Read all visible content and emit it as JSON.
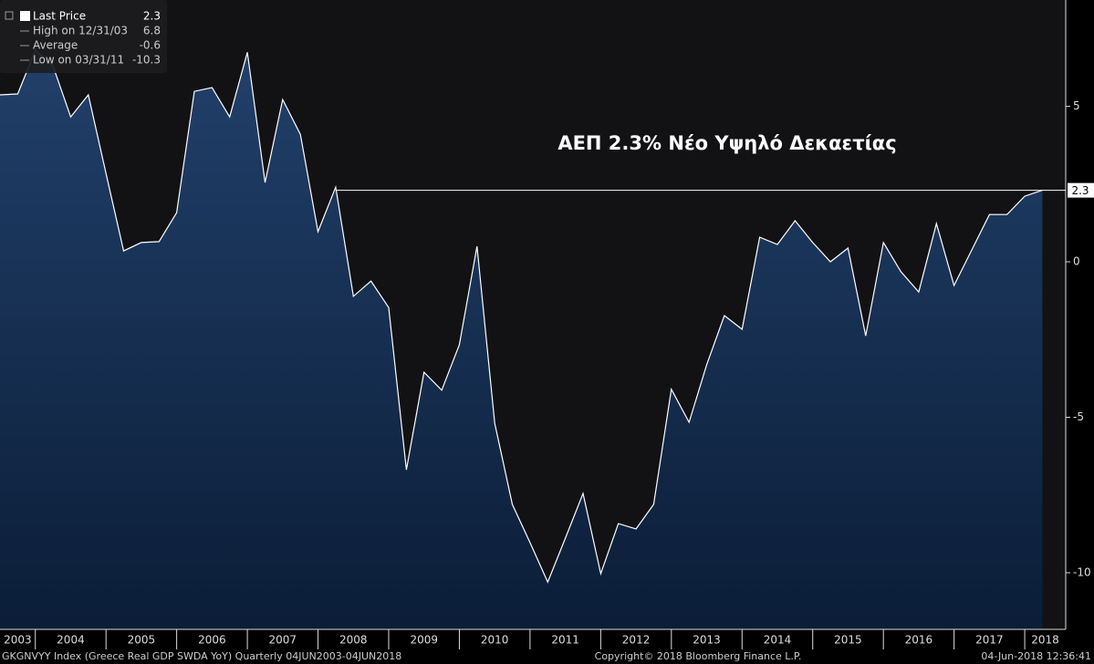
{
  "chart_data": {
    "type": "area",
    "annotation": "ΑΕΠ 2.3% Νέο Υψηλό Δεκαετίας",
    "legend": [
      {
        "label": "Last Price",
        "value": 2.3
      },
      {
        "label": "High on 12/31/03",
        "value": 6.8
      },
      {
        "label": "Average",
        "value": -0.6
      },
      {
        "label": "Low on 03/31/11",
        "value": -10.3
      }
    ],
    "last_price_line": 2.3,
    "x": [
      2003.5,
      2003.75,
      2004,
      2004.25,
      2004.5,
      2004.75,
      2005,
      2005.25,
      2005.5,
      2005.75,
      2006,
      2006.25,
      2006.5,
      2006.75,
      2007,
      2007.25,
      2007.5,
      2007.75,
      2008,
      2008.25,
      2008.5,
      2008.75,
      2009,
      2009.25,
      2009.5,
      2009.75,
      2010,
      2010.25,
      2010.5,
      2010.75,
      2011,
      2011.25,
      2011.5,
      2011.75,
      2012,
      2012.25,
      2012.5,
      2012.75,
      2013,
      2013.25,
      2013.5,
      2013.75,
      2014,
      2014.25,
      2014.5,
      2014.75,
      2015,
      2015.25,
      2015.5,
      2015.75,
      2016,
      2016.25,
      2016.5,
      2016.75,
      2017,
      2017.25,
      2017.5,
      2017.75,
      2018,
      2018.25
    ],
    "series": [
      {
        "color": "#ffffff",
        "fill_top": "#21406a",
        "fill_bottom": "#0b1d37",
        "values": [
          5.37,
          5.4,
          6.8,
          6.3,
          4.66,
          5.37,
          2.84,
          0.35,
          0.62,
          0.65,
          1.58,
          5.48,
          5.6,
          4.66,
          6.74,
          2.55,
          5.22,
          4.1,
          0.97,
          2.4,
          -1.11,
          -0.62,
          -1.47,
          -6.69,
          -3.55,
          -4.13,
          -2.67,
          0.5,
          -5.19,
          -7.8,
          -9.03,
          -10.3,
          -8.89,
          -7.45,
          -10.03,
          -8.42,
          -8.59,
          -7.8,
          -4.1,
          -5.16,
          -3.31,
          -1.73,
          -2.17,
          0.79,
          0.56,
          1.32,
          0.62,
          0,
          0.44,
          -2.38,
          0.62,
          -0.32,
          -0.97,
          1.23,
          -0.76,
          0.38,
          1.52,
          1.52,
          2.11,
          2.3
        ]
      }
    ],
    "xlim": [
      2003.5,
      2018.58
    ],
    "xticks": [
      2003,
      2004,
      2005,
      2006,
      2007,
      2008,
      2009,
      2010,
      2011,
      2012,
      2013,
      2014,
      2015,
      2016,
      2017,
      2018
    ],
    "ylim": [
      -11.82,
      8.42
    ],
    "yticks": [
      -10,
      -5,
      0,
      5
    ],
    "footer": {
      "left": "GKGNVYY Index (Greece Real GDP SWDA YoY)  Quarterly 04JUN2003-04JUN2018",
      "center": "Copyright© 2018 Bloomberg Finance L.P.",
      "right": "04-Jun-2018 12:36:41"
    }
  }
}
